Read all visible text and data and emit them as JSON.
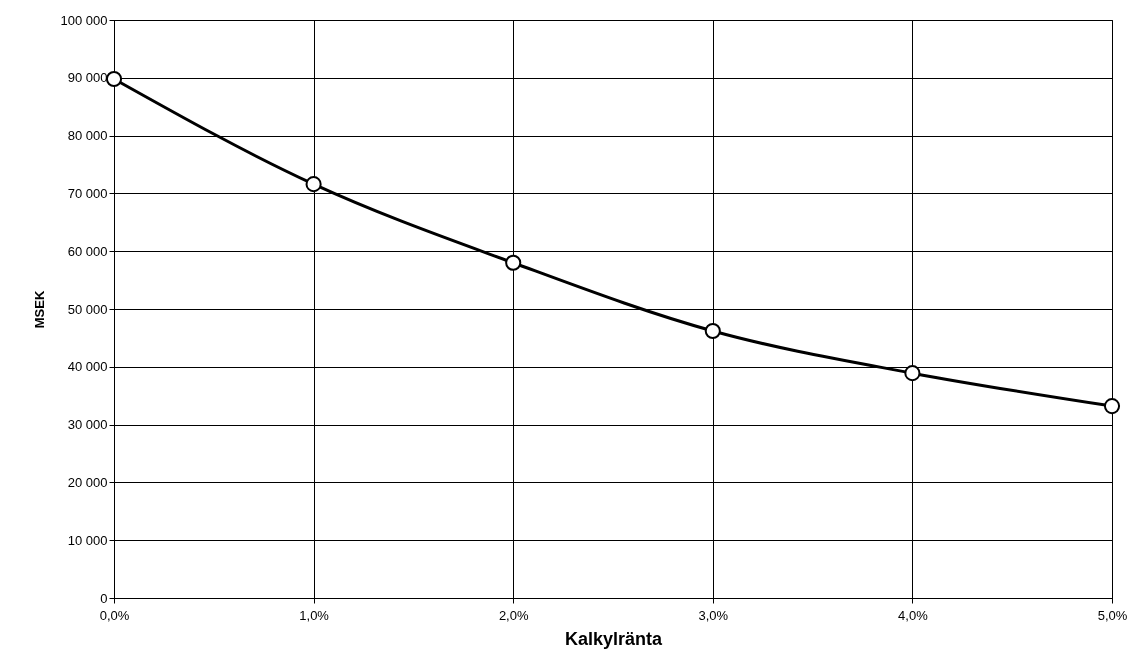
{
  "chart_data": {
    "type": "line",
    "xlabel": "Kalkylränta",
    "ylabel": "MSEK",
    "x": [
      0,
      1,
      2,
      3,
      4,
      5
    ],
    "series": [
      {
        "color": "#000000",
        "values": [
          89800,
          71600,
          58000,
          46200,
          38900,
          33200
        ]
      }
    ],
    "xlim": [
      0,
      5
    ],
    "xticks": [
      {
        "value": 0,
        "label": "0,0%"
      },
      {
        "value": 1,
        "label": "1,0%"
      },
      {
        "value": 2,
        "label": "2,0%"
      },
      {
        "value": 3,
        "label": "3,0%"
      },
      {
        "value": 4,
        "label": "4,0%"
      },
      {
        "value": 5,
        "label": "5,0%"
      }
    ],
    "ylim": [
      0,
      100000
    ],
    "yticks": [
      0,
      {
        "value": 10000,
        "label": "10 000"
      },
      {
        "value": 20000,
        "label": "20 000"
      },
      {
        "value": 30000,
        "label": "30 000"
      },
      {
        "value": 40000,
        "label": "40 000"
      },
      {
        "value": 50000,
        "label": "50 000"
      },
      {
        "value": 60000,
        "label": "60 000"
      },
      {
        "value": 70000,
        "label": "70 000"
      },
      {
        "value": 80000,
        "label": "80 000"
      },
      {
        "value": 90000,
        "label": "90 000"
      },
      {
        "value": 100000,
        "label": "100 000"
      }
    ],
    "grid": true,
    "marker": "circle",
    "line_style": "solid"
  }
}
